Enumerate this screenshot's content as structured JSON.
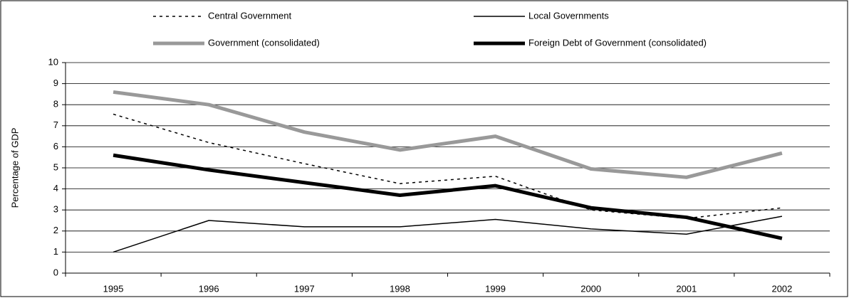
{
  "chart_data": {
    "type": "line",
    "y_axis_label": "Percentage of GDP",
    "categories": [
      "1995",
      "1996",
      "1997",
      "1998",
      "1999",
      "2000",
      "2001",
      "2002"
    ],
    "series": [
      {
        "name": "Central Government",
        "color": "#000000",
        "style": "dashed",
        "values": [
          7.55,
          6.2,
          5.2,
          4.25,
          4.6,
          3.0,
          2.6,
          3.1
        ]
      },
      {
        "name": "Local Governments",
        "color": "#000000",
        "style": "thin",
        "values": [
          1.0,
          2.5,
          2.2,
          2.2,
          2.55,
          2.1,
          1.85,
          2.7
        ]
      },
      {
        "name": "Government (consolidated)",
        "color": "#999999",
        "style": "thick",
        "values": [
          8.6,
          8.0,
          6.7,
          5.85,
          6.5,
          4.95,
          4.55,
          5.7
        ]
      },
      {
        "name": "Foreign Debt of Government (consolidated)",
        "color": "#000000",
        "style": "thick",
        "values": [
          5.6,
          4.9,
          4.3,
          3.7,
          4.15,
          3.1,
          2.65,
          1.65
        ]
      }
    ],
    "ylim": [
      0,
      10
    ],
    "yticks": [
      0,
      1,
      2,
      3,
      4,
      5,
      6,
      7,
      8,
      9,
      10
    ],
    "grid": true
  }
}
